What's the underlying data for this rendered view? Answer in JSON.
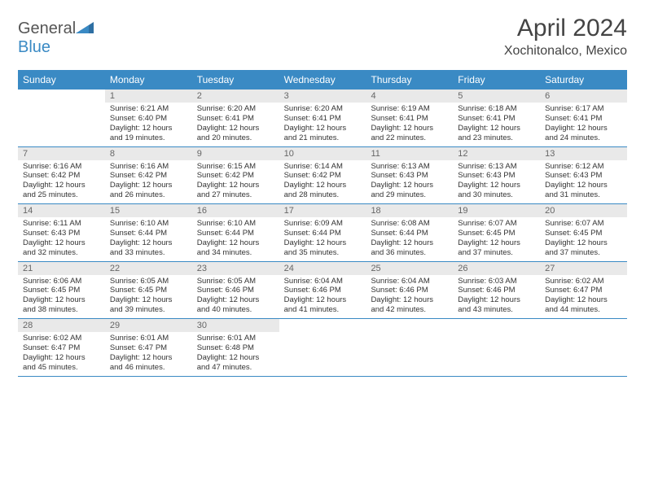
{
  "brand": {
    "text1": "General",
    "text2": "Blue",
    "color_gray": "#555555",
    "color_blue": "#3a8ac4"
  },
  "title": "April 2024",
  "subtitle": "Xochitonalco, Mexico",
  "calendar": {
    "header_bg": "#3a8ac4",
    "header_fg": "#ffffff",
    "daynum_bg": "#e9e9e9",
    "daynum_fg": "#666666",
    "border_color": "#3a8ac4",
    "day_names": [
      "Sunday",
      "Monday",
      "Tuesday",
      "Wednesday",
      "Thursday",
      "Friday",
      "Saturday"
    ],
    "weeks": [
      [
        {
          "n": "",
          "sunrise": "",
          "sunset": "",
          "daylight": ""
        },
        {
          "n": "1",
          "sunrise": "Sunrise: 6:21 AM",
          "sunset": "Sunset: 6:40 PM",
          "daylight": "Daylight: 12 hours and 19 minutes."
        },
        {
          "n": "2",
          "sunrise": "Sunrise: 6:20 AM",
          "sunset": "Sunset: 6:41 PM",
          "daylight": "Daylight: 12 hours and 20 minutes."
        },
        {
          "n": "3",
          "sunrise": "Sunrise: 6:20 AM",
          "sunset": "Sunset: 6:41 PM",
          "daylight": "Daylight: 12 hours and 21 minutes."
        },
        {
          "n": "4",
          "sunrise": "Sunrise: 6:19 AM",
          "sunset": "Sunset: 6:41 PM",
          "daylight": "Daylight: 12 hours and 22 minutes."
        },
        {
          "n": "5",
          "sunrise": "Sunrise: 6:18 AM",
          "sunset": "Sunset: 6:41 PM",
          "daylight": "Daylight: 12 hours and 23 minutes."
        },
        {
          "n": "6",
          "sunrise": "Sunrise: 6:17 AM",
          "sunset": "Sunset: 6:41 PM",
          "daylight": "Daylight: 12 hours and 24 minutes."
        }
      ],
      [
        {
          "n": "7",
          "sunrise": "Sunrise: 6:16 AM",
          "sunset": "Sunset: 6:42 PM",
          "daylight": "Daylight: 12 hours and 25 minutes."
        },
        {
          "n": "8",
          "sunrise": "Sunrise: 6:16 AM",
          "sunset": "Sunset: 6:42 PM",
          "daylight": "Daylight: 12 hours and 26 minutes."
        },
        {
          "n": "9",
          "sunrise": "Sunrise: 6:15 AM",
          "sunset": "Sunset: 6:42 PM",
          "daylight": "Daylight: 12 hours and 27 minutes."
        },
        {
          "n": "10",
          "sunrise": "Sunrise: 6:14 AM",
          "sunset": "Sunset: 6:42 PM",
          "daylight": "Daylight: 12 hours and 28 minutes."
        },
        {
          "n": "11",
          "sunrise": "Sunrise: 6:13 AM",
          "sunset": "Sunset: 6:43 PM",
          "daylight": "Daylight: 12 hours and 29 minutes."
        },
        {
          "n": "12",
          "sunrise": "Sunrise: 6:13 AM",
          "sunset": "Sunset: 6:43 PM",
          "daylight": "Daylight: 12 hours and 30 minutes."
        },
        {
          "n": "13",
          "sunrise": "Sunrise: 6:12 AM",
          "sunset": "Sunset: 6:43 PM",
          "daylight": "Daylight: 12 hours and 31 minutes."
        }
      ],
      [
        {
          "n": "14",
          "sunrise": "Sunrise: 6:11 AM",
          "sunset": "Sunset: 6:43 PM",
          "daylight": "Daylight: 12 hours and 32 minutes."
        },
        {
          "n": "15",
          "sunrise": "Sunrise: 6:10 AM",
          "sunset": "Sunset: 6:44 PM",
          "daylight": "Daylight: 12 hours and 33 minutes."
        },
        {
          "n": "16",
          "sunrise": "Sunrise: 6:10 AM",
          "sunset": "Sunset: 6:44 PM",
          "daylight": "Daylight: 12 hours and 34 minutes."
        },
        {
          "n": "17",
          "sunrise": "Sunrise: 6:09 AM",
          "sunset": "Sunset: 6:44 PM",
          "daylight": "Daylight: 12 hours and 35 minutes."
        },
        {
          "n": "18",
          "sunrise": "Sunrise: 6:08 AM",
          "sunset": "Sunset: 6:44 PM",
          "daylight": "Daylight: 12 hours and 36 minutes."
        },
        {
          "n": "19",
          "sunrise": "Sunrise: 6:07 AM",
          "sunset": "Sunset: 6:45 PM",
          "daylight": "Daylight: 12 hours and 37 minutes."
        },
        {
          "n": "20",
          "sunrise": "Sunrise: 6:07 AM",
          "sunset": "Sunset: 6:45 PM",
          "daylight": "Daylight: 12 hours and 37 minutes."
        }
      ],
      [
        {
          "n": "21",
          "sunrise": "Sunrise: 6:06 AM",
          "sunset": "Sunset: 6:45 PM",
          "daylight": "Daylight: 12 hours and 38 minutes."
        },
        {
          "n": "22",
          "sunrise": "Sunrise: 6:05 AM",
          "sunset": "Sunset: 6:45 PM",
          "daylight": "Daylight: 12 hours and 39 minutes."
        },
        {
          "n": "23",
          "sunrise": "Sunrise: 6:05 AM",
          "sunset": "Sunset: 6:46 PM",
          "daylight": "Daylight: 12 hours and 40 minutes."
        },
        {
          "n": "24",
          "sunrise": "Sunrise: 6:04 AM",
          "sunset": "Sunset: 6:46 PM",
          "daylight": "Daylight: 12 hours and 41 minutes."
        },
        {
          "n": "25",
          "sunrise": "Sunrise: 6:04 AM",
          "sunset": "Sunset: 6:46 PM",
          "daylight": "Daylight: 12 hours and 42 minutes."
        },
        {
          "n": "26",
          "sunrise": "Sunrise: 6:03 AM",
          "sunset": "Sunset: 6:46 PM",
          "daylight": "Daylight: 12 hours and 43 minutes."
        },
        {
          "n": "27",
          "sunrise": "Sunrise: 6:02 AM",
          "sunset": "Sunset: 6:47 PM",
          "daylight": "Daylight: 12 hours and 44 minutes."
        }
      ],
      [
        {
          "n": "28",
          "sunrise": "Sunrise: 6:02 AM",
          "sunset": "Sunset: 6:47 PM",
          "daylight": "Daylight: 12 hours and 45 minutes."
        },
        {
          "n": "29",
          "sunrise": "Sunrise: 6:01 AM",
          "sunset": "Sunset: 6:47 PM",
          "daylight": "Daylight: 12 hours and 46 minutes."
        },
        {
          "n": "30",
          "sunrise": "Sunrise: 6:01 AM",
          "sunset": "Sunset: 6:48 PM",
          "daylight": "Daylight: 12 hours and 47 minutes."
        },
        {
          "n": "",
          "sunrise": "",
          "sunset": "",
          "daylight": ""
        },
        {
          "n": "",
          "sunrise": "",
          "sunset": "",
          "daylight": ""
        },
        {
          "n": "",
          "sunrise": "",
          "sunset": "",
          "daylight": ""
        },
        {
          "n": "",
          "sunrise": "",
          "sunset": "",
          "daylight": ""
        }
      ]
    ]
  }
}
